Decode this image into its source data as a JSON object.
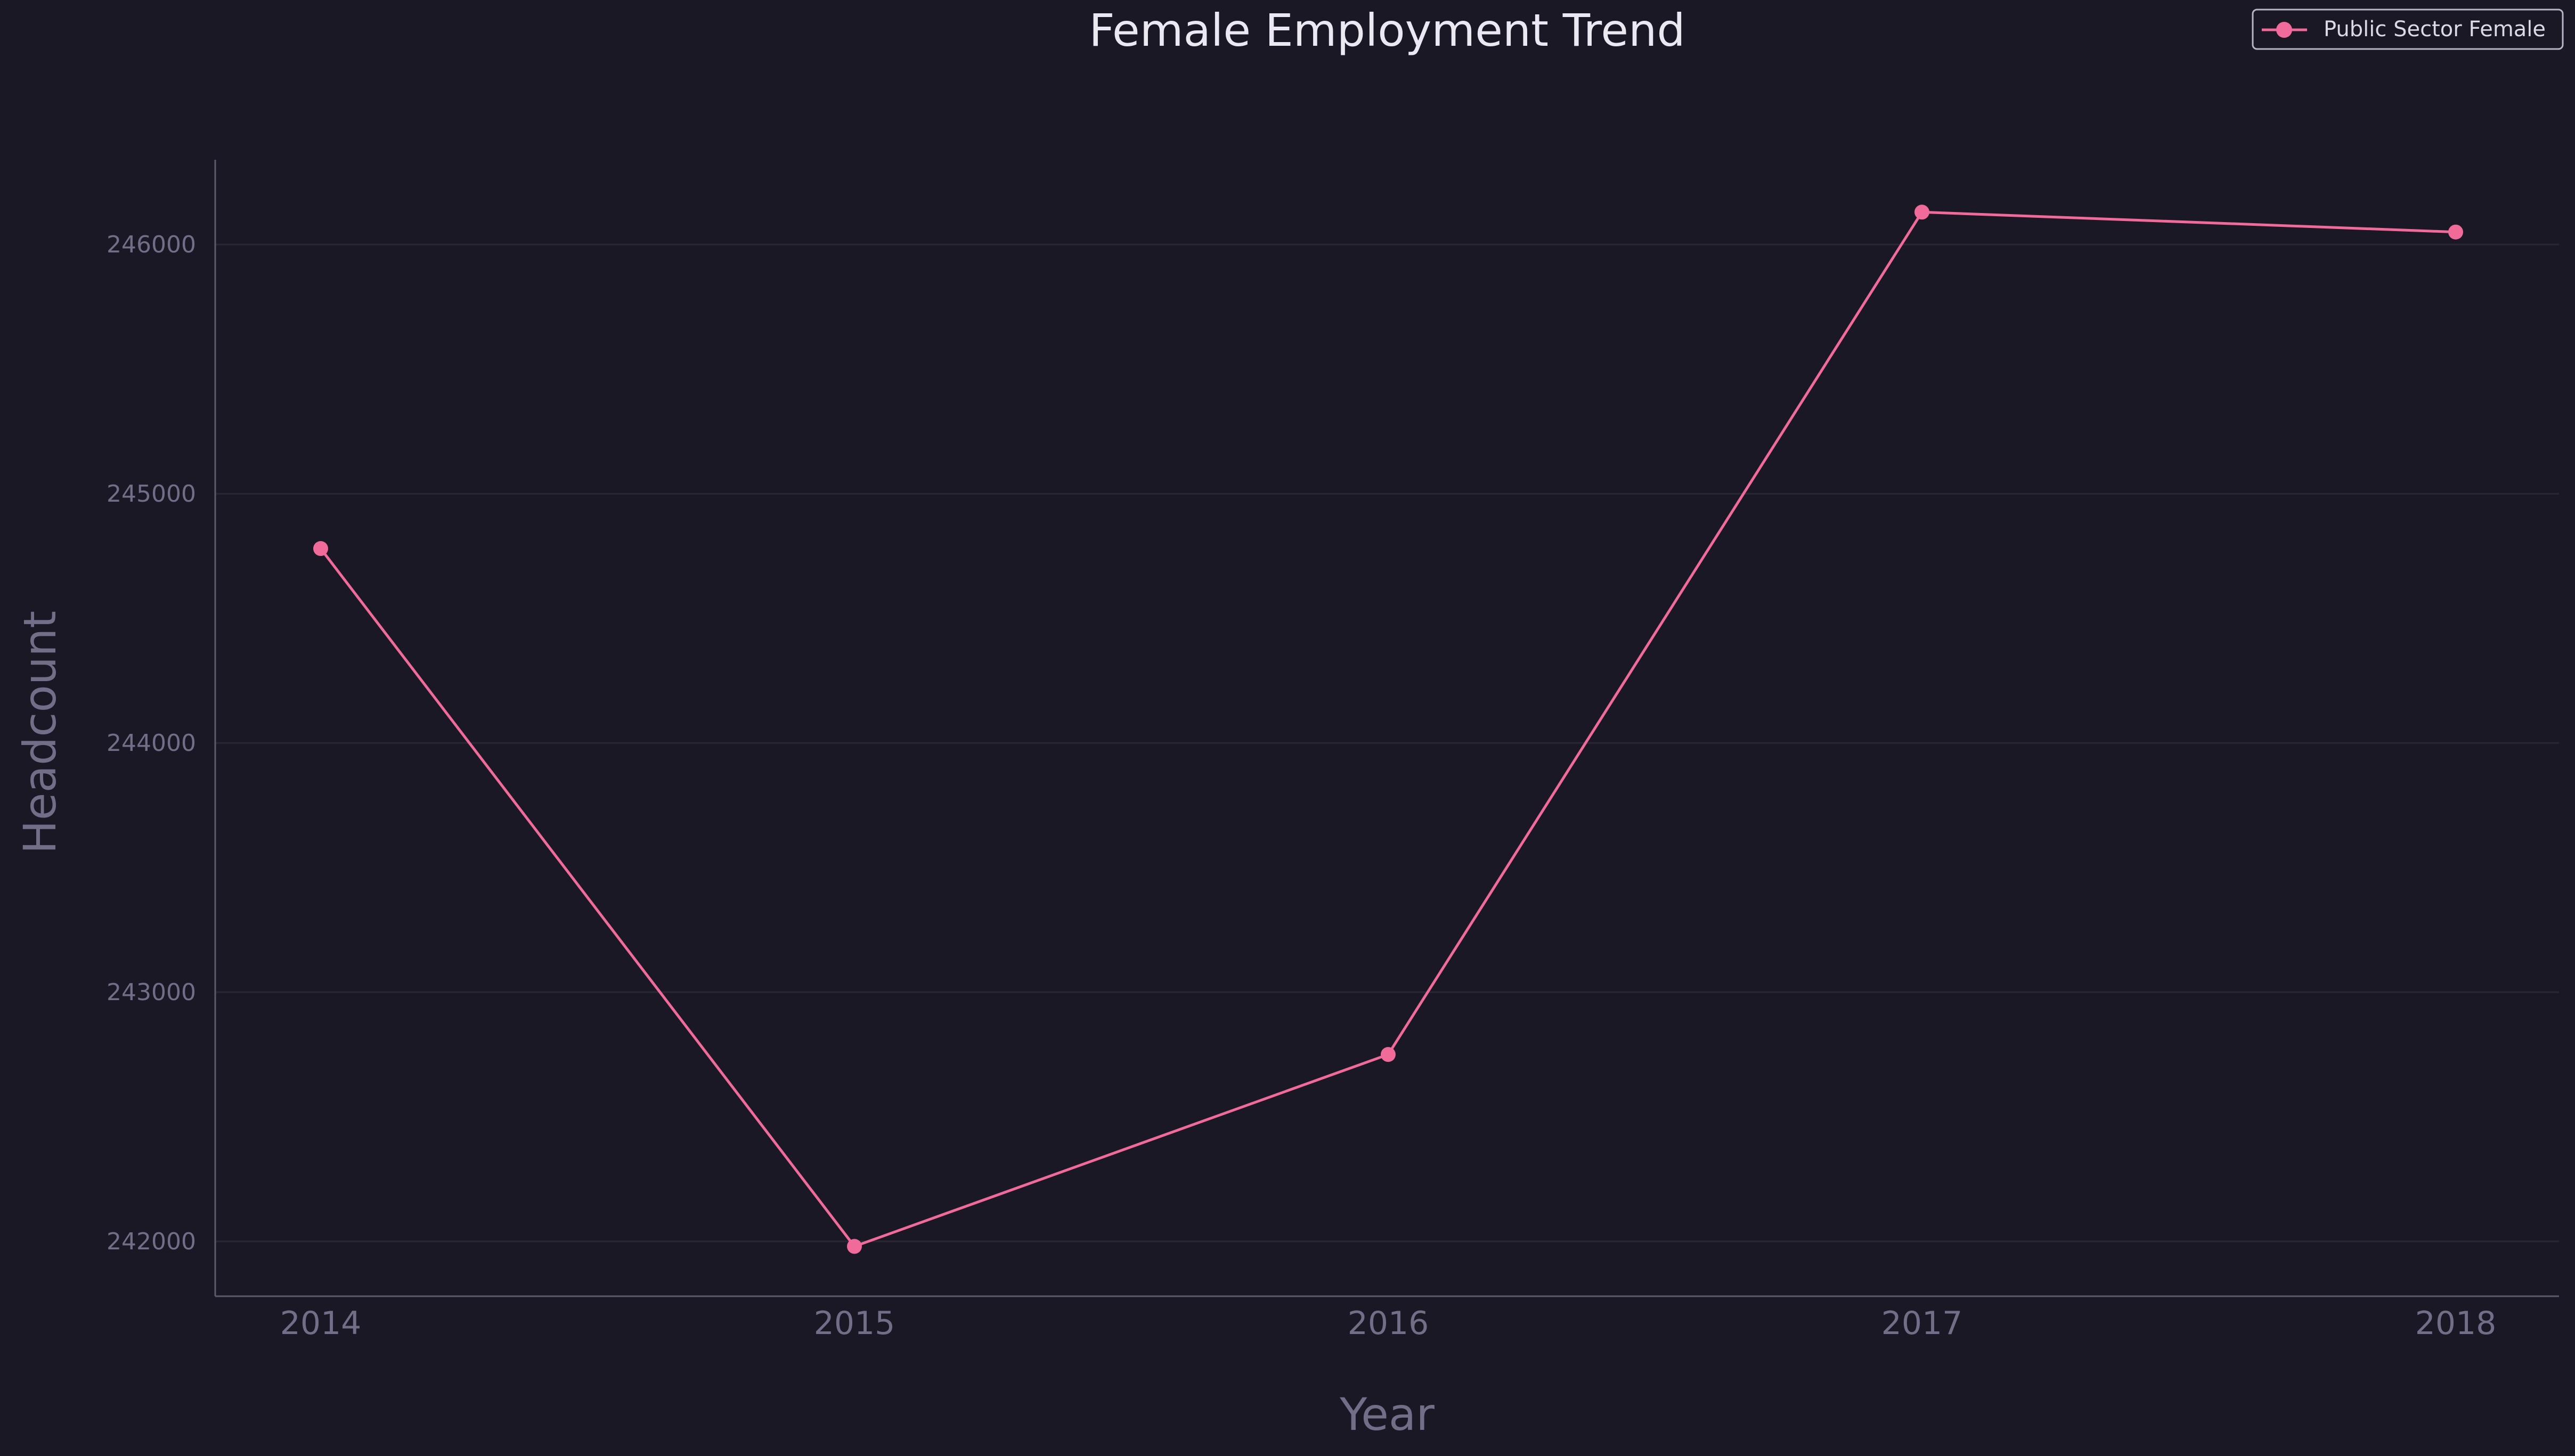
{
  "chart_data": {
    "type": "line",
    "title": "Female Employment Trend",
    "xlabel": "Year",
    "ylabel": "Headcount",
    "categories": [
      "2014",
      "2015",
      "2016",
      "2017",
      "2018"
    ],
    "series": [
      {
        "name": "Public Sector Female",
        "values": [
          244780,
          241980,
          242750,
          246130,
          246050
        ],
        "color": "#f06b99"
      }
    ],
    "yticks": [
      242000,
      243000,
      244000,
      245000,
      246000
    ],
    "ylim": [
      241780,
      246340
    ],
    "grid": "horizontal",
    "legend_position": "top-right",
    "colors": {
      "background": "#1b1825",
      "title": "#ece8f2",
      "axis_label": "#726e87",
      "tick_label": "#726e87",
      "axis_line": "#5d596c",
      "grid": "#2a2735",
      "legend_border": "#b9b4c8",
      "legend_text": "#dcd8e6"
    }
  }
}
